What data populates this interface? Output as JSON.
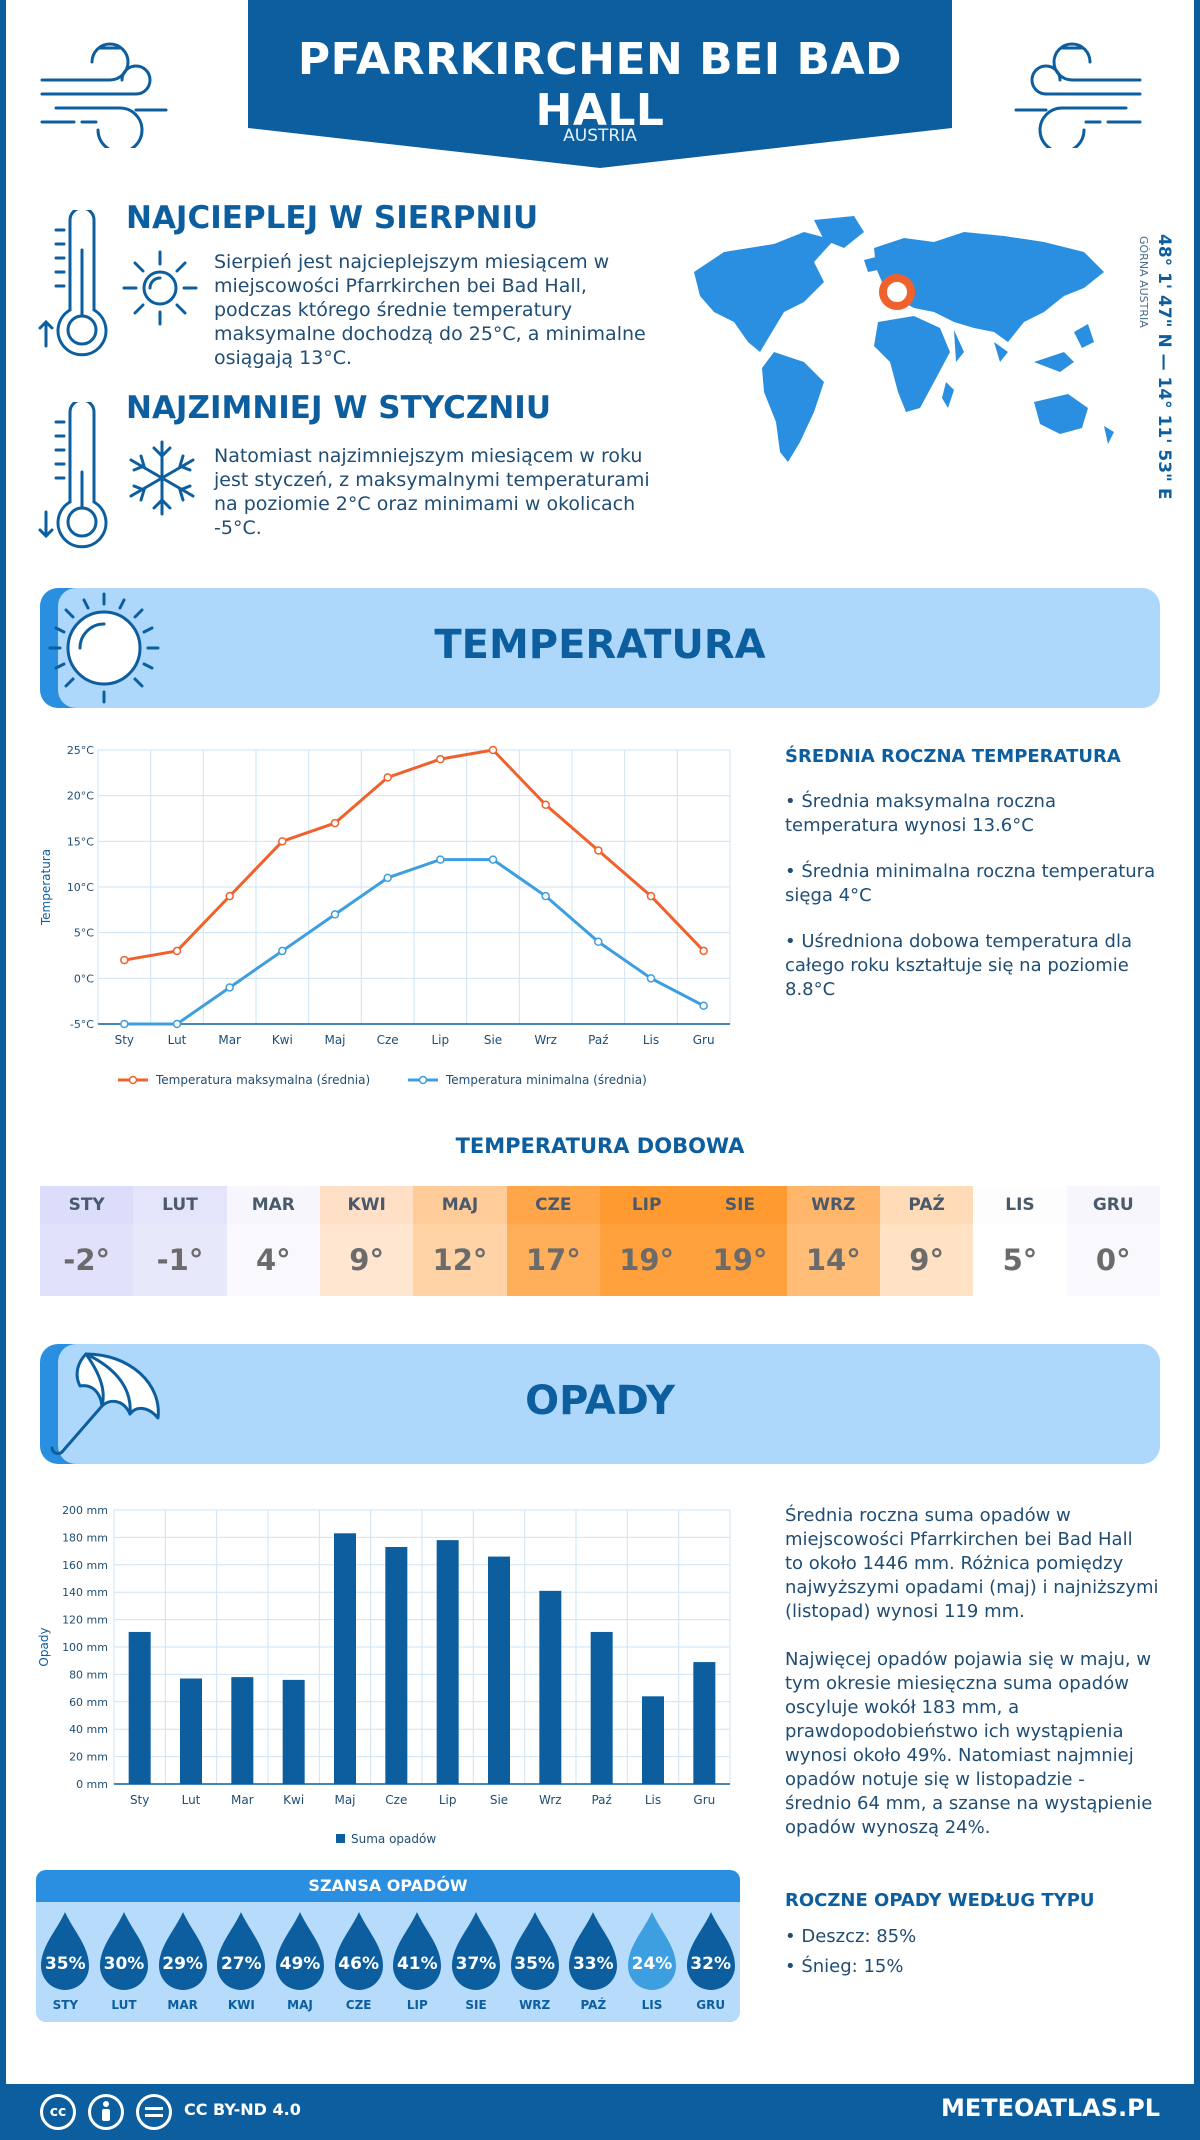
{
  "header": {
    "title": "PFARRKIRCHEN BEI BAD HALL",
    "country": "AUSTRIA"
  },
  "warmest": {
    "heading": "NAJCIEPLEJ W SIERPNIU",
    "lines": [
      "Sierpień jest najcieplejszym miesiącem w",
      "miejscowości Pfarrkirchen bei Bad Hall,",
      "podczas którego średnie temperatury",
      "maksymalne dochodzą do 25°C, a minimalne",
      "osiągają 13°C."
    ]
  },
  "coldest": {
    "heading": "NAJZIMNIEJ W STYCZNIU",
    "lines": [
      "Natomiast najzimniejszym miesiącem w roku",
      "jest styczeń, z maksymalnymi temperaturami",
      "na poziomie 2°C oraz minimami w okolicach",
      "-5°C."
    ]
  },
  "location": {
    "coords": "48° 1' 47\" N — 14° 11' 53\" E",
    "region": "GÓRNA AUSTRIA"
  },
  "temperature_section": {
    "title": "TEMPERATURA",
    "side_heading": "ŚREDNIA ROCZNA TEMPERATURA",
    "bullets": [
      [
        "• Średnia maksymalna roczna",
        "temperatura wynosi 13.6°C"
      ],
      [
        "• Średnia minimalna roczna temperatura",
        "sięga 4°C"
      ],
      [
        "• Uśredniona dobowa temperatura dla",
        "całego roku kształtuje się na poziomie",
        "8.8°C"
      ]
    ]
  },
  "chart_data": [
    {
      "type": "line",
      "categories": [
        "Sty",
        "Lut",
        "Mar",
        "Kwi",
        "Maj",
        "Cze",
        "Lip",
        "Sie",
        "Wrz",
        "Paź",
        "Lis",
        "Gru"
      ],
      "ylabel": "Temperatura",
      "ylim": [
        -5,
        25
      ],
      "yticks": [
        "-5°C",
        "0°C",
        "5°C",
        "10°C",
        "15°C",
        "20°C",
        "25°C"
      ],
      "grid": true,
      "legend_position": "bottom",
      "series": [
        {
          "name": "Temperatura maksymalna (średnia)",
          "color": "#f0622d",
          "values": [
            2,
            3,
            9,
            15,
            17,
            22,
            24,
            25,
            19,
            14,
            9,
            3
          ]
        },
        {
          "name": "Temperatura minimalna (średnia)",
          "color": "#3d9ee0",
          "values": [
            -5,
            -5,
            -1,
            3,
            7,
            11,
            13,
            13,
            9,
            4,
            0,
            -3
          ]
        }
      ]
    },
    {
      "type": "bar",
      "categories": [
        "Sty",
        "Lut",
        "Mar",
        "Kwi",
        "Maj",
        "Cze",
        "Lip",
        "Sie",
        "Wrz",
        "Paź",
        "Lis",
        "Gru"
      ],
      "ylabel": "Opady",
      "ylim": [
        0,
        200
      ],
      "yticks": [
        "0 mm",
        "20 mm",
        "40 mm",
        "60 mm",
        "80 mm",
        "100 mm",
        "120 mm",
        "140 mm",
        "160 mm",
        "180 mm",
        "200 mm"
      ],
      "grid": true,
      "legend_position": "bottom",
      "series": [
        {
          "name": "Suma opadów",
          "color": "#0c5e9f",
          "values": [
            111,
            77,
            78,
            76,
            183,
            173,
            178,
            166,
            141,
            111,
            64,
            89
          ]
        }
      ]
    }
  ],
  "daily": {
    "heading": "TEMPERATURA DOBOWA",
    "months": [
      "STY",
      "LUT",
      "MAR",
      "KWI",
      "MAJ",
      "CZE",
      "LIP",
      "SIE",
      "WRZ",
      "PAŹ",
      "LIS",
      "GRU"
    ],
    "values": [
      "-2°",
      "-1°",
      "4°",
      "9°",
      "12°",
      "17°",
      "19°",
      "19°",
      "14°",
      "9°",
      "5°",
      "0°"
    ],
    "head_colors": [
      "#dcdcfb",
      "#e4e4fb",
      "#f6f6fc",
      "#ffe0c6",
      "#ffcb98",
      "#ffa64a",
      "#ff9a30",
      "#ff9a30",
      "#ffb66b",
      "#ffdcb7",
      "#fdfdfd",
      "#f6f6fc"
    ],
    "value_colors": [
      "#e1e1fb",
      "#e8e8fb",
      "#f9f9fd",
      "#ffe6d0",
      "#ffd3a6",
      "#ffae5a",
      "#ffa03d",
      "#ffa03d",
      "#ffbd78",
      "#ffe2c3",
      "#ffffff",
      "#f9f9fd"
    ]
  },
  "precip_section": {
    "title": "OPADY",
    "para1": [
      "Średnia roczna suma opadów w",
      "miejscowości Pfarrkirchen bei Bad Hall",
      "to około 1446 mm. Różnica pomiędzy",
      "najwyższymi opadami (maj) i najniższymi",
      "(listopad) wynosi 119 mm."
    ],
    "para2": [
      "Najwięcej opadów pojawia się w maju, w",
      "tym okresie miesięczna suma opadów",
      "oscyluje wokół 183 mm, a",
      "prawdopodobieństwo ich wystąpienia",
      "wynosi około 49%. Natomiast najmniej",
      "opadów notuje się w listopadzie -",
      "średnio 64 mm, a szanse na wystąpienie",
      "opadów wynoszą 24%."
    ],
    "type_heading": "ROCZNE OPADY WEDŁUG TYPU",
    "types": [
      "• Deszcz: 85%",
      "• Śnieg: 15%"
    ]
  },
  "chance": {
    "heading": "SZANSA OPADÓW",
    "months": [
      "STY",
      "LUT",
      "MAR",
      "KWI",
      "MAJ",
      "CZE",
      "LIP",
      "SIE",
      "WRZ",
      "PAŹ",
      "LIS",
      "GRU"
    ],
    "values": [
      "35%",
      "30%",
      "29%",
      "27%",
      "49%",
      "46%",
      "41%",
      "37%",
      "35%",
      "33%",
      "24%",
      "32%"
    ],
    "highlight_index": 10
  },
  "footer": {
    "license": "CC BY-ND 4.0",
    "site": "METEOATLAS.PL",
    "icons": [
      "cc-icon",
      "by-icon",
      "nd-icon"
    ]
  }
}
